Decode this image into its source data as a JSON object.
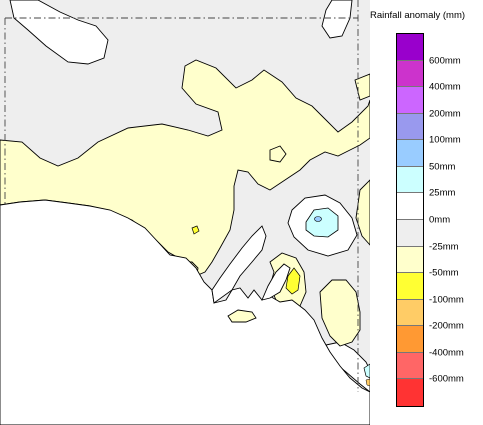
{
  "legend": {
    "title": "Rainfall anomaly (mm)",
    "colors": [
      "#9900cc",
      "#cc33cc",
      "#cc66ff",
      "#9999ee",
      "#99ccff",
      "#ccffff",
      "#ffffff",
      "#eeeeee",
      "#ffffcc",
      "#ffff33",
      "#ffcc66",
      "#ff9933",
      "#ff6666",
      "#ff3333"
    ],
    "labels": [
      "600mm",
      "400mm",
      "200mm",
      "100mm",
      "50mm",
      "25mm",
      "0mm",
      "-25mm",
      "-50mm",
      "-100mm",
      "-200mm",
      "-400mm",
      "-600mm"
    ]
  },
  "map_colors": {
    "band_0_to_-25": "#eeeeee",
    "band_-25_to_-50": "#ffffcc",
    "band_-50_to_-100": "#ffff33",
    "band_-100_to_-200": "#ffcc66",
    "band_0_to_25": "#ffffff",
    "band_25_to_50": "#ccffff",
    "band_50_to_100": "#99ccff"
  }
}
